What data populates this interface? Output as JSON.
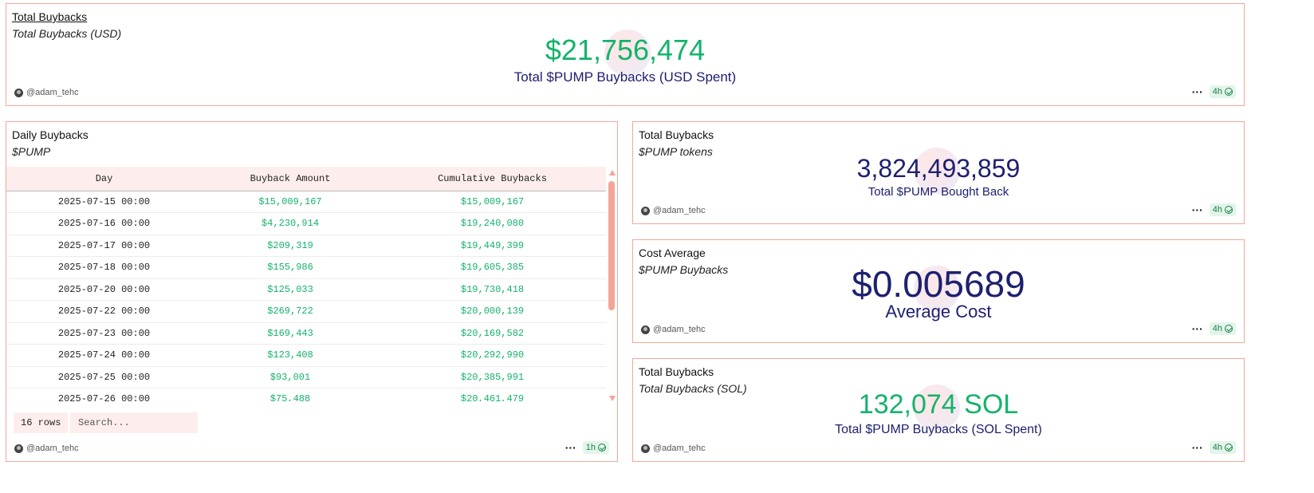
{
  "panel_total_usd": {
    "title": "Total Buybacks",
    "subtitle": "Total Buybacks (USD)",
    "value": "$21,756,474",
    "label": "Total $PUMP Buybacks (USD Spent)",
    "author": "@adam_tehc",
    "freshness": "4h"
  },
  "panel_daily": {
    "title": "Daily Buybacks",
    "subtitle": "$PUMP",
    "author": "@adam_tehc",
    "freshness": "1h",
    "row_count": "16 rows",
    "search_placeholder": "Search...",
    "columns": [
      "Day",
      "Buyback Amount",
      "Cumulative Buybacks"
    ],
    "rows": [
      [
        "2025-07-15 00:00",
        "$15,009,167",
        "$15,009,167"
      ],
      [
        "2025-07-16 00:00",
        "$4,230,914",
        "$19,240,080"
      ],
      [
        "2025-07-17 00:00",
        "$209,319",
        "$19,449,399"
      ],
      [
        "2025-07-18 00:00",
        "$155,986",
        "$19,605,385"
      ],
      [
        "2025-07-20 00:00",
        "$125,033",
        "$19,730,418"
      ],
      [
        "2025-07-22 00:00",
        "$269,722",
        "$20,000,139"
      ],
      [
        "2025-07-23 00:00",
        "$169,443",
        "$20,169,582"
      ],
      [
        "2025-07-24 00:00",
        "$123,408",
        "$20,292,990"
      ],
      [
        "2025-07-25 00:00",
        "$93,001",
        "$20,385,991"
      ],
      [
        "2025-07-26 00:00",
        "$75,488",
        "$20,461,479"
      ]
    ]
  },
  "panel_tokens": {
    "title": "Total Buybacks",
    "subtitle": "$PUMP tokens",
    "value": "3,824,493,859",
    "label": "Total $PUMP Bought Back",
    "author": "@adam_tehc",
    "freshness": "4h"
  },
  "panel_cost": {
    "title": "Cost Average",
    "subtitle": "$PUMP Buybacks",
    "value": "$0.005689",
    "label": "Average Cost",
    "author": "@adam_tehc",
    "freshness": "4h"
  },
  "panel_sol": {
    "title": "Total Buybacks",
    "subtitle": "Total Buybacks (SOL)",
    "value": "132,074 SOL",
    "label": "Total $PUMP Buybacks (SOL Spent)",
    "author": "@adam_tehc",
    "freshness": "4h"
  },
  "colors": {
    "green": "#14b36a",
    "navy": "#1e2070",
    "border": "#f2a898",
    "header_bg": "#fdeeed"
  }
}
